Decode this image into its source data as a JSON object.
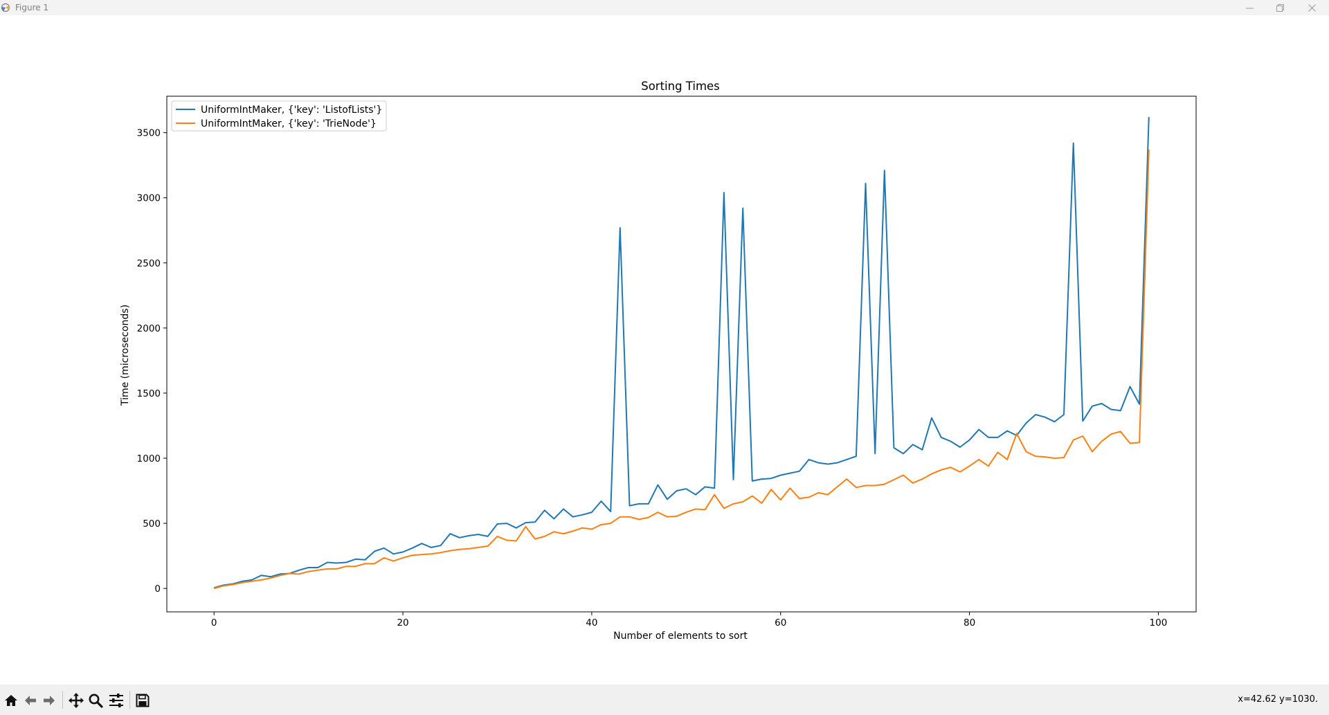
{
  "window": {
    "title": "Figure 1"
  },
  "toolbar": {
    "buttons": [
      "home-icon",
      "back-arrow-icon",
      "forward-arrow-icon",
      "pan-move-icon",
      "zoom-magnifier-icon",
      "configure-subplots-icon",
      "save-floppy-icon"
    ],
    "coords": "x=42.62 y=1030."
  },
  "chart_data": {
    "type": "line",
    "title": "Sorting Times",
    "xlabel": "Number of elements to sort",
    "ylabel": "Time (microseconds)",
    "xlim": [
      -5,
      104
    ],
    "ylim": [
      -180,
      3780
    ],
    "xticks": [
      0,
      20,
      40,
      60,
      80,
      100
    ],
    "yticks": [
      0,
      500,
      1000,
      1500,
      2000,
      2500,
      3000,
      3500
    ],
    "grid": false,
    "legend": "top-left",
    "series": [
      {
        "name": "UniformIntMaker, {'key': 'ListofLists'}",
        "color": "#1f77b4",
        "values": [
          5,
          25,
          35,
          55,
          65,
          100,
          90,
          110,
          115,
          140,
          160,
          160,
          200,
          195,
          200,
          225,
          220,
          285,
          310,
          265,
          280,
          310,
          345,
          315,
          330,
          420,
          390,
          405,
          415,
          400,
          495,
          500,
          465,
          505,
          510,
          600,
          535,
          610,
          550,
          565,
          585,
          670,
          590,
          2770,
          635,
          650,
          650,
          795,
          685,
          750,
          765,
          720,
          780,
          770,
          3040,
          835,
          2920,
          825,
          840,
          845,
          870,
          885,
          900,
          990,
          965,
          955,
          965,
          990,
          1015,
          3110,
          1035,
          3210,
          1080,
          1035,
          1105,
          1065,
          1310,
          1160,
          1130,
          1085,
          1140,
          1220,
          1160,
          1160,
          1210,
          1175,
          1270,
          1335,
          1315,
          1280,
          1335,
          3420,
          1285,
          1400,
          1420,
          1375,
          1365,
          1550,
          1415,
          3620
        ]
      },
      {
        "name": "UniformIntMaker, {'key': 'TrieNode'}",
        "color": "#ff7f0e",
        "values": [
          0,
          20,
          30,
          45,
          55,
          65,
          80,
          100,
          115,
          110,
          130,
          140,
          150,
          150,
          170,
          170,
          190,
          190,
          235,
          210,
          235,
          255,
          260,
          265,
          275,
          290,
          300,
          305,
          315,
          325,
          400,
          370,
          365,
          475,
          380,
          400,
          435,
          420,
          440,
          465,
          455,
          490,
          500,
          550,
          550,
          530,
          545,
          585,
          550,
          555,
          585,
          610,
          605,
          720,
          615,
          650,
          665,
          710,
          655,
          760,
          680,
          770,
          690,
          700,
          735,
          720,
          780,
          840,
          775,
          790,
          790,
          800,
          835,
          870,
          810,
          840,
          880,
          910,
          930,
          895,
          940,
          990,
          940,
          1045,
          990,
          1190,
          1050,
          1015,
          1010,
          1000,
          1005,
          1140,
          1170,
          1050,
          1130,
          1185,
          1205,
          1115,
          1120,
          3370
        ]
      }
    ]
  }
}
